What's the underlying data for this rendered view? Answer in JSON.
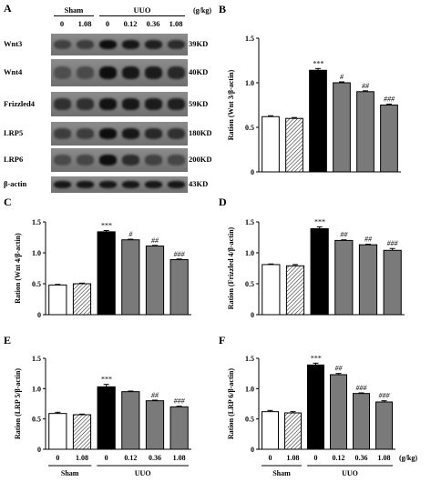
{
  "blot": {
    "letter": "A",
    "groups": [
      {
        "label": "Sham",
        "lanes": 2
      },
      {
        "label": "UUO",
        "lanes": 4
      }
    ],
    "doses": [
      "0",
      "1.08",
      "0",
      "0.12",
      "0.36",
      "1.08"
    ],
    "unit": "(g/kg)",
    "rows": [
      {
        "name": "Wnt3",
        "kd": "39KD",
        "intensity": [
          0.35,
          0.4,
          0.95,
          0.85,
          0.75,
          0.6
        ]
      },
      {
        "name": "Wnt4",
        "kd": "40KD",
        "intensity": [
          0.2,
          0.25,
          0.95,
          0.85,
          0.8,
          0.65
        ]
      },
      {
        "name": "Frizzled4",
        "kd": "59KD",
        "intensity": [
          0.55,
          0.55,
          0.9,
          0.85,
          0.8,
          0.75
        ]
      },
      {
        "name": "LRP5",
        "kd": "180KD",
        "intensity": [
          0.4,
          0.4,
          0.95,
          0.85,
          0.65,
          0.55
        ]
      },
      {
        "name": "LRP6",
        "kd": "200KD",
        "intensity": [
          0.25,
          0.3,
          0.95,
          0.6,
          0.35,
          0.3
        ]
      },
      {
        "name": "β-actin",
        "kd": "43KD",
        "intensity": [
          0.85,
          0.85,
          0.85,
          0.85,
          0.85,
          0.85
        ]
      }
    ]
  },
  "chart_data": [
    {
      "letter": "B",
      "type": "bar",
      "ylabel": "Ration (Wnt 3/β-actin)",
      "ylim": [
        0,
        1.5
      ],
      "yticks": [
        "0",
        "0.5",
        "1.0",
        "1.5"
      ],
      "values": [
        0.62,
        0.6,
        1.14,
        1.0,
        0.9,
        0.75
      ],
      "errors": [
        0.01,
        0.01,
        0.02,
        0.01,
        0.01,
        0.01
      ],
      "sig": [
        "",
        "",
        "***",
        "#",
        "##",
        "###"
      ],
      "styles": [
        "white",
        "hatched",
        "black",
        "gray",
        "gray",
        "gray"
      ],
      "show_x": false
    },
    {
      "letter": "C",
      "type": "bar",
      "ylabel": "Ration (Wnt 4/β-actin)",
      "ylim": [
        0,
        1.5
      ],
      "yticks": [
        "0",
        "0.5",
        "1.0",
        "1.5"
      ],
      "values": [
        0.48,
        0.5,
        1.34,
        1.21,
        1.11,
        0.89
      ],
      "errors": [
        0.01,
        0.01,
        0.02,
        0.01,
        0.01,
        0.01
      ],
      "sig": [
        "",
        "",
        "***",
        "#",
        "##",
        "###"
      ],
      "styles": [
        "white",
        "hatched",
        "black",
        "gray",
        "gray",
        "gray"
      ],
      "show_x": false
    },
    {
      "letter": "D",
      "type": "bar",
      "ylabel": "Ration (Frizzled 4/β-actin)",
      "ylim": [
        0,
        1.5
      ],
      "yticks": [
        "0",
        "0.5",
        "1.0",
        "1.5"
      ],
      "values": [
        0.81,
        0.79,
        1.39,
        1.2,
        1.13,
        1.04
      ],
      "errors": [
        0.01,
        0.02,
        0.03,
        0.01,
        0.01,
        0.03
      ],
      "sig": [
        "",
        "",
        "***",
        "##",
        "##",
        "###"
      ],
      "styles": [
        "white",
        "hatched",
        "black",
        "gray",
        "gray",
        "gray"
      ],
      "show_x": false
    },
    {
      "letter": "E",
      "type": "bar",
      "ylabel": "Ration (LRP 5/β-actin)",
      "ylim": [
        0,
        1.5
      ],
      "yticks": [
        "0",
        "0.5",
        "1.0",
        "1.5"
      ],
      "values": [
        0.59,
        0.57,
        1.03,
        0.95,
        0.8,
        0.7
      ],
      "errors": [
        0.02,
        0.01,
        0.04,
        0.01,
        0.01,
        0.01
      ],
      "sig": [
        "",
        "",
        "***",
        "",
        "##",
        "###"
      ],
      "styles": [
        "white",
        "hatched",
        "black",
        "gray",
        "gray",
        "gray"
      ],
      "show_x": true,
      "xticks": [
        "0",
        "1.08",
        "0",
        "0.12",
        "0.36",
        "1.08"
      ],
      "groups": [
        "Sham",
        "UUO"
      ]
    },
    {
      "letter": "F",
      "type": "bar",
      "ylabel": "Ration (LRP 6/β-actin)",
      "ylim": [
        0,
        1.5
      ],
      "yticks": [
        "0",
        "0.5",
        "1.0",
        "1.5"
      ],
      "values": [
        0.62,
        0.6,
        1.39,
        1.23,
        0.92,
        0.78
      ],
      "errors": [
        0.02,
        0.02,
        0.03,
        0.02,
        0.01,
        0.02
      ],
      "sig": [
        "",
        "",
        "***",
        "##",
        "###",
        "###"
      ],
      "styles": [
        "white",
        "hatched",
        "black",
        "gray",
        "gray",
        "gray"
      ],
      "show_x": true,
      "xticks": [
        "0",
        "1.08",
        "0",
        "0.12",
        "0.36",
        "1.08"
      ],
      "groups": [
        "Sham",
        "UUO"
      ],
      "unit": "(g/kg)"
    }
  ]
}
